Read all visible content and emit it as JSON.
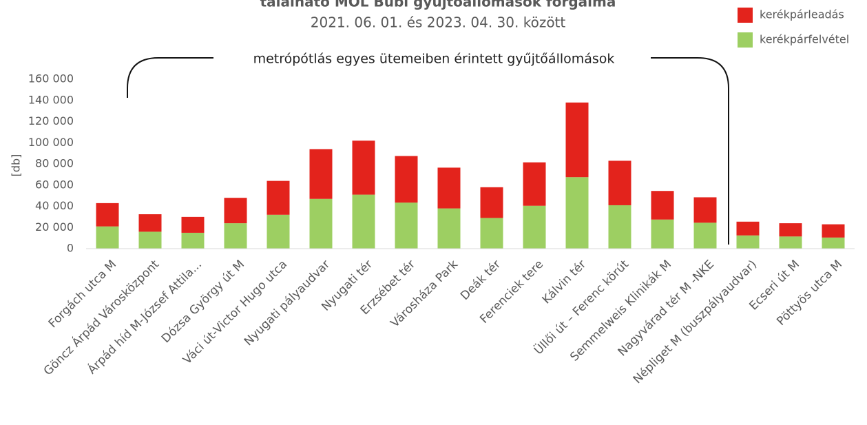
{
  "chart_data": {
    "type": "stacked_bar",
    "title": "található MOL Bubi gyűjtőállomások forgalma",
    "subtitle": "2021. 06. 01. és 2023. 04. 30. között",
    "annotation": "metrópótlás egyes ütemeiben érintett gyűjtőállomások",
    "y_label": "[db]",
    "categories": [
      "Forgách utca M",
      "Göncz Árpád Városközpont",
      "Árpád híd M-József Attila...",
      "Dózsa György út M",
      "Váci út-Victor Hugo utca",
      "Nyugati pályaudvar",
      "Nyugati tér",
      "Erzsébet tér",
      "Városháza Park",
      "Deák tér",
      "Ferenciek tere",
      "Kálvin tér",
      "Üllői út – Ferenc körút",
      "Semmelweis Klinikák M",
      "Nagyvárad tér M -NKE",
      "Népliget M (buszpályaudvar)",
      "Ecseri út M",
      "Pöttyös utca M"
    ],
    "series": [
      {
        "name": "kerékpárleadás",
        "color": "#e3231c",
        "values": [
          22000,
          16500,
          15000,
          24000,
          32000,
          47000,
          51000,
          44000,
          38500,
          29000,
          41000,
          70500,
          42000,
          27000,
          24000,
          13000,
          12500,
          12500
        ]
      },
      {
        "name": "kerékpárfelvétel",
        "color": "#9dcf62",
        "values": [
          21000,
          16000,
          15000,
          24000,
          32000,
          47000,
          51000,
          43500,
          38000,
          29000,
          40500,
          67500,
          41000,
          27500,
          24500,
          12500,
          11500,
          10500
        ]
      }
    ],
    "ylim": [
      0,
      160000
    ],
    "yticks": [
      0,
      {
        "value": 20000,
        "label": "20 000"
      },
      {
        "value": 40000,
        "label": "40 000"
      },
      {
        "value": 60000,
        "label": "60 000"
      },
      {
        "value": 80000,
        "label": "80 000"
      },
      {
        "value": 100000,
        "label": "100 000"
      },
      {
        "value": 120000,
        "label": "120 000"
      },
      {
        "value": 140000,
        "label": "140 000"
      },
      {
        "value": 160000,
        "label": "160 000"
      }
    ],
    "legend": "top-right",
    "grid": false
  }
}
